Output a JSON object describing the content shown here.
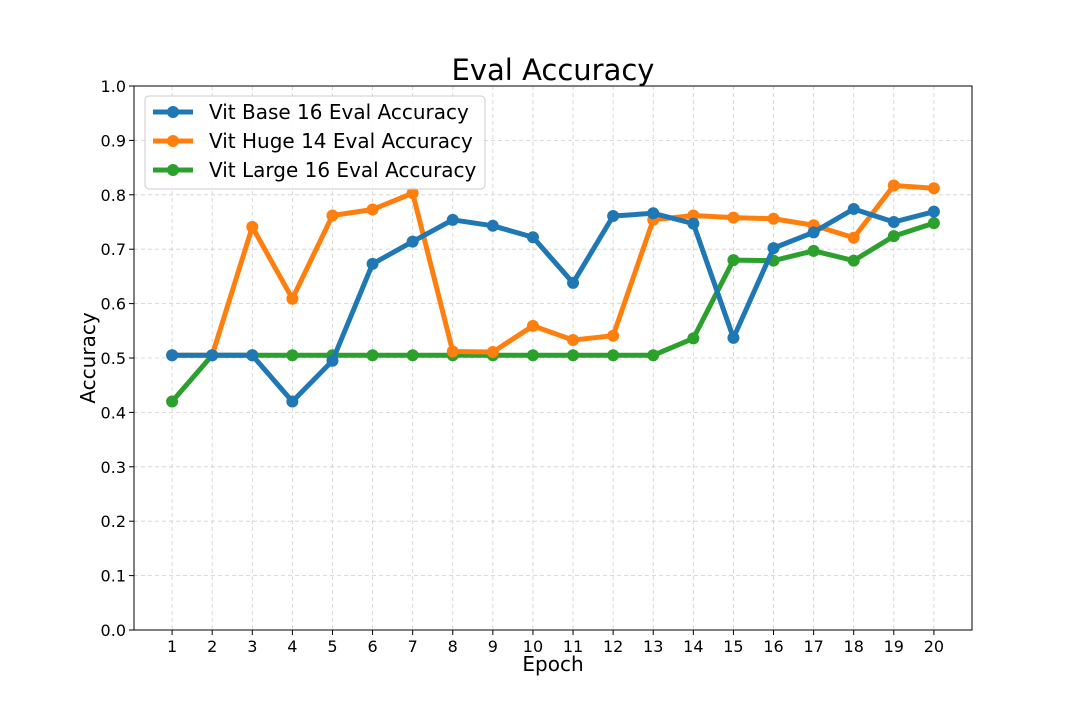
{
  "chart_data": {
    "type": "line",
    "title": "Eval Accuracy",
    "xlabel": "Epoch",
    "ylabel": "Accuracy",
    "x": [
      1,
      2,
      3,
      4,
      5,
      6,
      7,
      8,
      9,
      10,
      11,
      12,
      13,
      14,
      15,
      16,
      17,
      18,
      19,
      20
    ],
    "xlim": [
      0.05,
      20.95
    ],
    "ylim": [
      0.0,
      1.0
    ],
    "yticks": [
      0.0,
      0.1,
      0.2,
      0.3,
      0.4,
      0.5,
      0.6,
      0.7,
      0.8,
      0.9,
      1.0
    ],
    "ytick_labels": [
      "0.0",
      "0.1",
      "0.2",
      "0.3",
      "0.4",
      "0.5",
      "0.6",
      "0.7",
      "0.8",
      "0.9",
      "1.0"
    ],
    "xtick_labels": [
      "1",
      "2",
      "3",
      "4",
      "5",
      "6",
      "7",
      "8",
      "9",
      "10",
      "11",
      "12",
      "13",
      "14",
      "15",
      "16",
      "17",
      "18",
      "19",
      "20"
    ],
    "grid": true,
    "legend_position": "top-left",
    "series": [
      {
        "name": "Vit Base 16 Eval Accuracy",
        "color": "#1f77b4",
        "values": [
          0.505,
          0.505,
          0.505,
          0.42,
          0.495,
          0.673,
          0.714,
          0.754,
          0.743,
          0.722,
          0.638,
          0.761,
          0.766,
          0.747,
          0.537,
          0.702,
          0.731,
          0.774,
          0.75,
          0.769
        ]
      },
      {
        "name": "Vit Huge 14 Eval Accuracy",
        "color": "#ff7f0e",
        "values": [
          0.505,
          0.505,
          0.741,
          0.609,
          0.762,
          0.773,
          0.803,
          0.512,
          0.511,
          0.559,
          0.533,
          0.541,
          0.754,
          0.762,
          0.758,
          0.756,
          0.744,
          0.721,
          0.817,
          0.812
        ]
      },
      {
        "name": "Vit Large 16 Eval Accuracy",
        "color": "#2ca02c",
        "values": [
          0.42,
          0.505,
          0.505,
          0.505,
          0.505,
          0.505,
          0.505,
          0.505,
          0.505,
          0.505,
          0.505,
          0.505,
          0.505,
          0.536,
          0.68,
          0.679,
          0.697,
          0.679,
          0.724,
          0.748
        ]
      }
    ]
  }
}
